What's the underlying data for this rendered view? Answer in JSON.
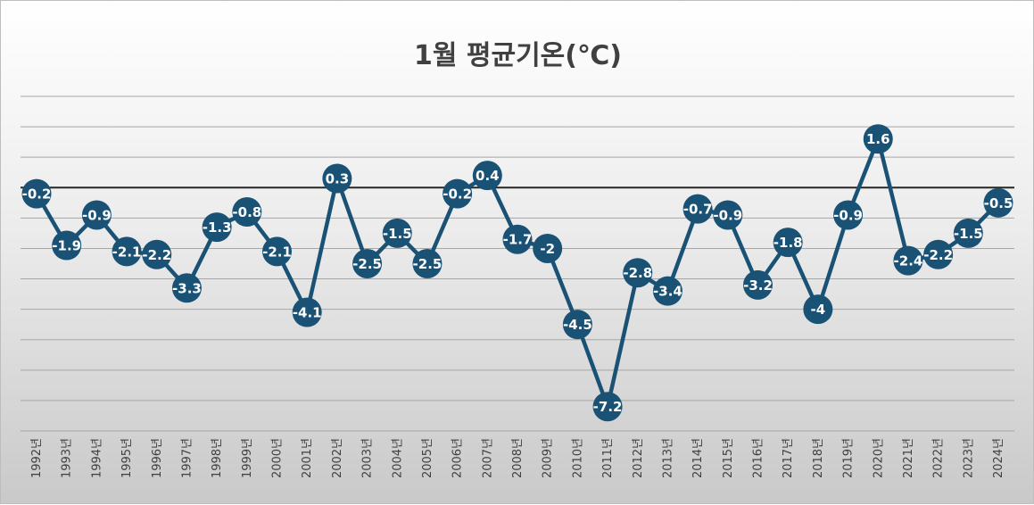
{
  "chart_data": {
    "type": "line",
    "title": "1월 평균기온(℃)",
    "xlabel": "",
    "ylabel": "",
    "categories": [
      "1992년",
      "1993년",
      "1994년",
      "1995년",
      "1996년",
      "1997년",
      "1998년",
      "1999년",
      "2000년",
      "2001년",
      "2002년",
      "2003년",
      "2004년",
      "2005년",
      "2006년",
      "2007년",
      "2008년",
      "2009년",
      "2010년",
      "2011년",
      "2012년",
      "2013년",
      "2014년",
      "2015년",
      "2016년",
      "2017년",
      "2018년",
      "2019년",
      "2020년",
      "2021년",
      "2022년",
      "2023년",
      "2024년"
    ],
    "series": [
      {
        "values": [
          -0.2,
          -1.9,
          -0.9,
          -2.1,
          -2.2,
          -3.3,
          -1.3,
          -0.8,
          -2.1,
          -4.1,
          0.3,
          -2.5,
          -1.5,
          -2.5,
          -0.2,
          0.4,
          -1.7,
          -2,
          -4.5,
          -7.2,
          -2.8,
          -3.4,
          -0.7,
          -0.9,
          -3.2,
          -1.8,
          -4,
          -0.9,
          1.6,
          -2.4,
          -2.2,
          -1.5,
          -0.5
        ],
        "labels": [
          "-0.2",
          "-1.9",
          "-0.9",
          "-2.1",
          "-2.2",
          "-3.3",
          "-1.3",
          "-0.8",
          "-2.1",
          "-4.1",
          "0.3",
          "-2.5",
          "-1.5",
          "-2.5",
          "-0.2",
          "0.4",
          "-1.7",
          "-2",
          "-4.5",
          "-7.2",
          "-2.8",
          "-3.4",
          "-0.7",
          "-0.9",
          "-3.2",
          "-1.8",
          "-4",
          "-0.9",
          "1.6",
          "-2.4",
          "-2.2",
          "-1.5",
          "-0.5"
        ],
        "color": "#1a5276"
      }
    ],
    "ylim": [
      -8,
      3
    ],
    "grid": true,
    "gridline_step": 1,
    "zero_line": true,
    "legend": "none",
    "colors": {
      "line": "#1a5276",
      "marker": "#1a5276",
      "zero_line": "#262626",
      "grid": "#a6a6a6",
      "label": "#ffffff"
    }
  }
}
